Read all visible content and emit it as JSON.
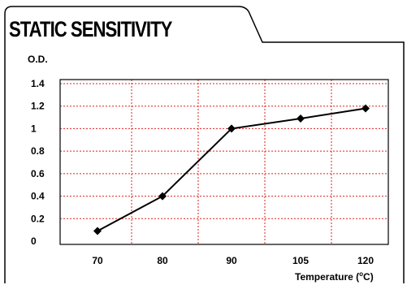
{
  "chart_data": {
    "type": "line",
    "title": "STATIC SENSITIVITY",
    "ylabel": "O.D.",
    "xlabel_prefix": "Temperature (",
    "xlabel_degree": "o",
    "xlabel_suffix": "C)",
    "categories": [
      "70",
      "80",
      "90",
      "105",
      "120"
    ],
    "y_ticks": [
      "0",
      "0.2",
      "0.4",
      "0.6",
      "0.8",
      "1",
      "1.2",
      "1.4"
    ],
    "ylim": [
      0,
      1.4
    ],
    "grid": true,
    "grid_color": "#e02020",
    "line_color": "#000000",
    "series": [
      {
        "x": [
          70,
          80,
          90,
          105,
          120
        ],
        "values": [
          0.09,
          0.4,
          1.0,
          1.09,
          1.18
        ]
      }
    ]
  }
}
